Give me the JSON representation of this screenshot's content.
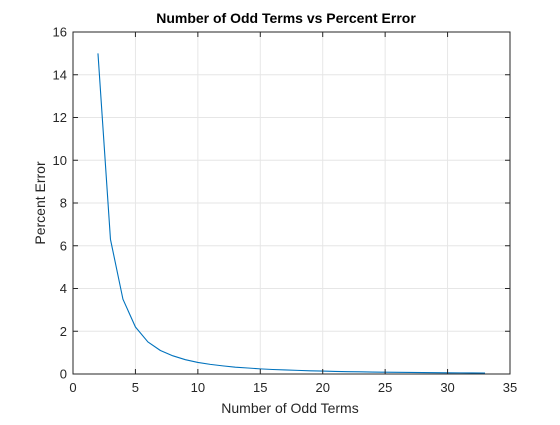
{
  "chart_data": {
    "type": "line",
    "title": "Number of Odd Terms vs Percent Error",
    "xlabel": "Number of Odd Terms",
    "ylabel": "Percent Error",
    "xlim": [
      0,
      35
    ],
    "ylim": [
      0,
      16
    ],
    "xticks": [
      0,
      5,
      10,
      15,
      20,
      25,
      30,
      35
    ],
    "yticks": [
      0,
      2,
      4,
      6,
      8,
      10,
      12,
      14,
      16
    ],
    "grid": true,
    "series": [
      {
        "color": "#0072bd",
        "x": [
          2,
          3,
          4,
          5,
          6,
          7,
          8,
          9,
          10,
          11,
          12,
          13,
          14,
          15,
          16,
          17,
          18,
          19,
          20,
          21,
          22,
          23,
          24,
          25,
          26,
          27,
          28,
          29,
          30,
          31,
          32,
          33
        ],
        "y": [
          15.0,
          6.3,
          3.5,
          2.2,
          1.5,
          1.1,
          0.85,
          0.67,
          0.54,
          0.45,
          0.38,
          0.32,
          0.28,
          0.24,
          0.21,
          0.19,
          0.17,
          0.15,
          0.135,
          0.12,
          0.11,
          0.1,
          0.09,
          0.085,
          0.078,
          0.072,
          0.066,
          0.061,
          0.057,
          0.053,
          0.05,
          0.047
        ]
      }
    ]
  }
}
